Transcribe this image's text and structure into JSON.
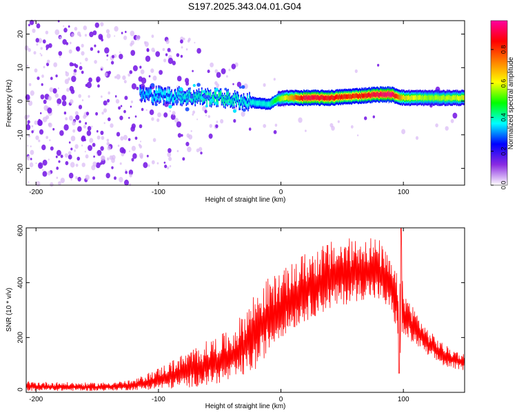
{
  "figure_title": "S197.2025.343.04.01.G04",
  "chart_data": [
    {
      "type": "heatmap",
      "title": "S197.2025.343.04.01.G04",
      "xlabel": "Height of straight line (km)",
      "ylabel": "Frequency (Hz)",
      "xlim": [
        -208,
        150
      ],
      "ylim": [
        -25,
        24
      ],
      "xticks": [
        -200,
        -100,
        0,
        100
      ],
      "yticks": [
        -20,
        -10,
        0,
        10,
        20
      ],
      "colorbar": {
        "label": "Normalized spectral amplitude",
        "range": [
          0,
          0.97
        ],
        "ticks": [
          0.0,
          0.2,
          0.4,
          0.6,
          0.8
        ],
        "colormap": [
          "#ffffff",
          "#8a2be2",
          "#0000ff",
          "#00ffff",
          "#00ff00",
          "#ffff00",
          "#ff8000",
          "#ff0000",
          "#ff00a0"
        ]
      },
      "ridge": {
        "description": "strong narrow band near 0-2 Hz for heights above about -25 km; scattered noise blobs below",
        "x": [
          -115,
          -80,
          -50,
          -30,
          -10,
          0,
          20,
          40,
          60,
          80,
          90,
          100,
          120,
          150
        ],
        "freq": [
          2,
          1.5,
          1,
          0,
          -1,
          1,
          1,
          1,
          1.5,
          2,
          2,
          1,
          1,
          1
        ],
        "amplitude": [
          0.25,
          0.3,
          0.35,
          0.3,
          0.3,
          0.5,
          0.9,
          0.85,
          0.8,
          0.9,
          0.95,
          0.6,
          0.5,
          0.55
        ]
      }
    },
    {
      "type": "line",
      "xlabel": "Height of straight line (km)",
      "ylabel": "SNR (10 * v/v)",
      "xlim": [
        -208,
        150
      ],
      "ylim": [
        0,
        600
      ],
      "xticks": [
        -200,
        -100,
        0,
        100
      ],
      "yticks": [
        0,
        200,
        400,
        600
      ],
      "series": [
        {
          "name": "SNR",
          "color": "#ff0000",
          "envelope_x": [
            -208,
            -150,
            -120,
            -100,
            -80,
            -60,
            -40,
            -30,
            -20,
            -10,
            0,
            20,
            40,
            60,
            70,
            80,
            90,
            96,
            98,
            100,
            110,
            120,
            135,
            150
          ],
          "envelope_lo": [
            5,
            5,
            8,
            10,
            15,
            25,
            40,
            60,
            80,
            150,
            200,
            260,
            300,
            330,
            340,
            330,
            290,
            200,
            70,
            200,
            170,
            130,
            90,
            80
          ],
          "envelope_hi": [
            40,
            35,
            45,
            90,
            140,
            190,
            230,
            300,
            380,
            420,
            440,
            510,
            550,
            565,
            575,
            560,
            480,
            420,
            600,
            380,
            300,
            230,
            170,
            140
          ]
        }
      ]
    }
  ]
}
